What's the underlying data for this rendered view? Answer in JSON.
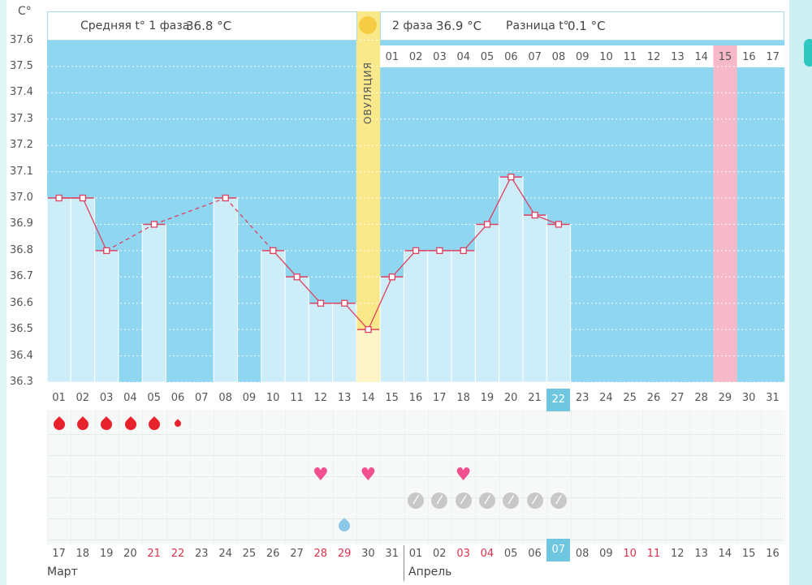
{
  "colors": {
    "chart_bg": "#8fd7f0",
    "bar": "#cdeef8",
    "ovulation": "#fae98a",
    "pink_col": "#f6b9c9",
    "line": "#e0405f",
    "highlight": "#6fc6e0",
    "red_day": "#e0304a"
  },
  "header": {
    "unit": "C°",
    "phase1_label": "Средняя t° 1 фаза",
    "phase1_value": "36.8 °C",
    "phase2_label": "2 фаза",
    "phase2_value": "36.9 °C",
    "diff_label": "Разница t°",
    "diff_value": "0.1 °C",
    "ovulation": "ОВУЛЯЦИЯ"
  },
  "chart_data": {
    "type": "line",
    "ylim": [
      36.3,
      37.6
    ],
    "yticks": [
      "37.6",
      "37.5",
      "37.4",
      "37.3",
      "37.2",
      "37.1",
      "37.0",
      "36.9",
      "36.8",
      "36.7",
      "36.6",
      "36.5",
      "36.4",
      "36.3"
    ],
    "cycle_days": [
      "01",
      "02",
      "03",
      "04",
      "05",
      "06",
      "07",
      "08",
      "09",
      "10",
      "11",
      "12",
      "13",
      "14",
      "15",
      "16",
      "17",
      "18",
      "19",
      "20",
      "21",
      "22",
      "23",
      "24",
      "25",
      "26",
      "27",
      "28",
      "29",
      "30",
      "31"
    ],
    "dates": [
      "17",
      "18",
      "19",
      "20",
      "21",
      "22",
      "23",
      "24",
      "25",
      "26",
      "27",
      "28",
      "29",
      "30",
      "31",
      "01",
      "02",
      "03",
      "04",
      "05",
      "06",
      "07",
      "08",
      "09",
      "10",
      "11",
      "12",
      "13",
      "14",
      "15",
      "16"
    ],
    "red_dates": [
      4,
      5,
      11,
      12,
      17,
      18,
      24,
      25
    ],
    "today_index": 21,
    "post_ovulation_days": [
      "01",
      "02",
      "03",
      "04",
      "05",
      "06",
      "07",
      "08",
      "09",
      "10",
      "11",
      "12",
      "13",
      "14",
      "15",
      "16",
      "17"
    ],
    "pink_post_ovulation_index": 14,
    "ovulation_index": 13,
    "temps": [
      37.0,
      37.0,
      36.8,
      null,
      36.9,
      null,
      null,
      37.0,
      null,
      36.8,
      36.7,
      36.6,
      36.6,
      36.5,
      36.7,
      36.8,
      36.8,
      36.8,
      36.9,
      37.08,
      36.935,
      36.9,
      null,
      null,
      null,
      null,
      null,
      null,
      null,
      null,
      null
    ],
    "months": [
      "Март",
      "Апрель"
    ],
    "bleeding": [
      1,
      1,
      1,
      1,
      1,
      0.5
    ],
    "hearts": [
      11,
      13,
      17
    ],
    "pills": [
      15,
      16,
      17,
      18,
      19,
      20,
      21
    ],
    "blue_drop": 12
  }
}
